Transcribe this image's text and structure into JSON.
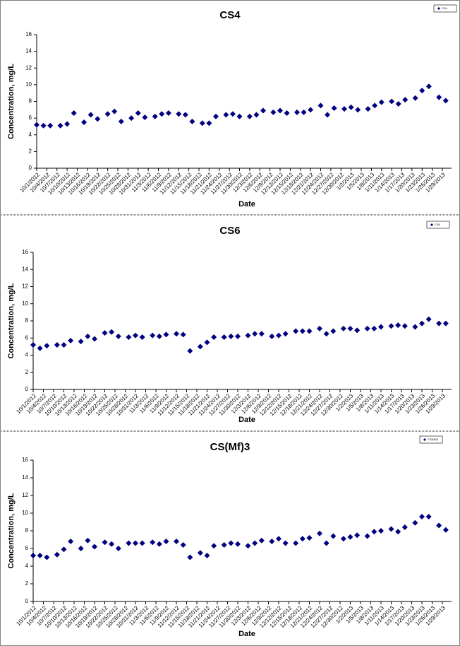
{
  "chart_data": [
    {
      "type": "scatter",
      "title": "CS4",
      "x_label": "Date",
      "y_label": "Concentration, mg/L",
      "x": [
        "10/1/2012",
        "10/3/2012",
        "10/5/2012",
        "10/8/2012",
        "10/10/2012",
        "10/12/2012",
        "10/15/2012",
        "10/17/2012",
        "10/19/2012",
        "10/22/2012",
        "10/24/2012",
        "10/26/2012",
        "10/29/2012",
        "10/31/2012",
        "11/2/2012",
        "11/5/2012",
        "11/7/2012",
        "11/9/2012",
        "11/12/2012",
        "11/14/2012",
        "11/16/2012",
        "11/19/2012",
        "11/21/2012",
        "11/23/2012",
        "11/26/2012",
        "11/28/2012",
        "11/30/2012",
        "12/3/2012",
        "12/5/2012",
        "12/7/2012",
        "12/10/2012",
        "12/12/2012",
        "12/14/2012",
        "12/17/2012",
        "12/19/2012",
        "12/21/2012",
        "12/24/2012",
        "12/26/2012",
        "12/28/2012",
        "12/31/2012",
        "1/2/2013",
        "1/4/2013",
        "1/7/2013",
        "1/9/2013",
        "1/11/2013",
        "1/14/2013",
        "1/16/2013",
        "1/18/2013",
        "1/21/2013",
        "1/23/2013",
        "1/25/2013",
        "1/28/2013",
        "1/30/2013"
      ],
      "series": [
        {
          "name": "CS4",
          "color": "#000080",
          "values": [
            5.2,
            5.1,
            5.1,
            5.1,
            5.3,
            6.6,
            5.5,
            6.4,
            5.9,
            6.5,
            6.8,
            5.6,
            6.0,
            6.6,
            6.1,
            6.2,
            6.5,
            6.6,
            6.5,
            6.4,
            5.6,
            5.4,
            5.4,
            6.2,
            6.4,
            6.5,
            6.2,
            6.2,
            6.4,
            6.9,
            6.7,
            6.9,
            6.6,
            6.7,
            6.7,
            7.0,
            7.5,
            6.4,
            7.2,
            7.1,
            7.3,
            7.0,
            7.1,
            7.5,
            7.9,
            8.0,
            7.7,
            8.2,
            8.4,
            9.3,
            9.8,
            8.5,
            8.1
          ]
        }
      ],
      "xlim": [
        "10/1/2012",
        "1/29/2013"
      ],
      "xticks": [
        "10/1/2012",
        "10/4/2012",
        "10/7/2012",
        "10/10/2012",
        "10/13/2012",
        "10/16/2012",
        "10/19/2012",
        "10/22/2012",
        "10/25/2012",
        "10/28/2012",
        "10/31/2012",
        "11/3/2012",
        "11/6/2012",
        "11/9/2012",
        "11/12/2012",
        "11/15/2012",
        "11/18/2012",
        "11/21/2012",
        "11/24/2012",
        "11/27/2012",
        "11/30/2012",
        "12/3/2012",
        "12/6/2012",
        "12/9/2012",
        "12/12/2012",
        "12/15/2012",
        "12/18/2012",
        "12/21/2012",
        "12/24/2012",
        "12/27/2012",
        "12/30/2012",
        "1/2/2013",
        "1/5/2013",
        "1/8/2013",
        "1/11/2013",
        "1/14/2013",
        "1/17/2013",
        "1/20/2013",
        "1/23/2013",
        "1/26/2013",
        "1/29/2013"
      ],
      "ylim": [
        0,
        16
      ],
      "yticks": [
        0,
        2,
        4,
        6,
        8,
        10,
        12,
        14,
        16
      ],
      "grid": false,
      "legend": "upper right"
    },
    {
      "type": "scatter",
      "title": "CS6",
      "x_label": "Date",
      "y_label": "Concentration, mg/L",
      "x": [
        "10/1/2012",
        "10/3/2012",
        "10/5/2012",
        "10/8/2012",
        "10/10/2012",
        "10/12/2012",
        "10/15/2012",
        "10/17/2012",
        "10/19/2012",
        "10/22/2012",
        "10/24/2012",
        "10/26/2012",
        "10/29/2012",
        "10/31/2012",
        "11/2/2012",
        "11/5/2012",
        "11/7/2012",
        "11/9/2012",
        "11/12/2012",
        "11/14/2012",
        "11/16/2012",
        "11/19/2012",
        "11/21/2012",
        "11/23/2012",
        "11/26/2012",
        "11/28/2012",
        "11/30/2012",
        "12/3/2012",
        "12/5/2012",
        "12/7/2012",
        "12/10/2012",
        "12/12/2012",
        "12/14/2012",
        "12/17/2012",
        "12/19/2012",
        "12/21/2012",
        "12/24/2012",
        "12/26/2012",
        "12/28/2012",
        "12/31/2012",
        "1/2/2013",
        "1/4/2013",
        "1/7/2013",
        "1/9/2013",
        "1/11/2013",
        "1/14/2013",
        "1/16/2013",
        "1/18/2013",
        "1/21/2013",
        "1/23/2013",
        "1/25/2013",
        "1/28/2013",
        "1/30/2013"
      ],
      "series": [
        {
          "name": "CS6",
          "color": "#000080",
          "values": [
            5.2,
            4.8,
            5.1,
            5.2,
            5.2,
            5.7,
            5.6,
            6.2,
            5.9,
            6.6,
            6.7,
            6.2,
            6.1,
            6.3,
            6.1,
            6.3,
            6.2,
            6.4,
            6.5,
            6.4,
            4.5,
            5.0,
            5.5,
            6.1,
            6.1,
            6.2,
            6.2,
            6.3,
            6.5,
            6.5,
            6.2,
            6.3,
            6.5,
            6.8,
            6.8,
            6.8,
            7.1,
            6.5,
            6.8,
            7.1,
            7.1,
            6.9,
            7.1,
            7.1,
            7.3,
            7.4,
            7.5,
            7.4,
            7.3,
            7.7,
            8.2,
            7.7,
            7.7
          ]
        }
      ],
      "xlim": [
        "10/1/2012",
        "1/29/2013"
      ],
      "xticks": [
        "10/1/2012",
        "10/4/2012",
        "10/7/2012",
        "10/10/2012",
        "10/13/2012",
        "10/16/2012",
        "10/19/2012",
        "10/22/2012",
        "10/25/2012",
        "10/28/2012",
        "10/31/2012",
        "11/3/2012",
        "11/6/2012",
        "11/9/2012",
        "11/12/2012",
        "11/15/2012",
        "11/18/2012",
        "11/21/2012",
        "11/24/2012",
        "11/27/2012",
        "11/30/2012",
        "12/3/2012",
        "12/6/2012",
        "12/9/2012",
        "12/12/2012",
        "12/15/2012",
        "12/18/2012",
        "12/21/2012",
        "12/24/2012",
        "12/27/2012",
        "12/30/2012",
        "1/2/2013",
        "1/5/2013",
        "1/8/2013",
        "1/11/2013",
        "1/14/2013",
        "1/17/2013",
        "1/20/2013",
        "1/23/2013",
        "1/26/2013",
        "1/29/2013"
      ],
      "ylim": [
        0,
        16
      ],
      "yticks": [
        0,
        2,
        4,
        6,
        8,
        10,
        12,
        14,
        16
      ],
      "grid": false,
      "legend": "upper right"
    },
    {
      "type": "scatter",
      "title": "CS(Mf)3",
      "x_label": "Date",
      "y_label": "Concentration, mg/L",
      "x": [
        "10/1/2012",
        "10/3/2012",
        "10/5/2012",
        "10/8/2012",
        "10/10/2012",
        "10/12/2012",
        "10/15/2012",
        "10/17/2012",
        "10/19/2012",
        "10/22/2012",
        "10/24/2012",
        "10/26/2012",
        "10/29/2012",
        "10/31/2012",
        "11/2/2012",
        "11/5/2012",
        "11/7/2012",
        "11/9/2012",
        "11/12/2012",
        "11/14/2012",
        "11/16/2012",
        "11/19/2012",
        "11/21/2012",
        "11/23/2012",
        "11/26/2012",
        "11/28/2012",
        "11/30/2012",
        "12/3/2012",
        "12/5/2012",
        "12/7/2012",
        "12/10/2012",
        "12/12/2012",
        "12/14/2012",
        "12/17/2012",
        "12/19/2012",
        "12/21/2012",
        "12/24/2012",
        "12/26/2012",
        "12/28/2012",
        "12/31/2012",
        "1/2/2013",
        "1/4/2013",
        "1/7/2013",
        "1/9/2013",
        "1/11/2013",
        "1/14/2013",
        "1/16/2013",
        "1/18/2013",
        "1/21/2013",
        "1/23/2013",
        "1/25/2013",
        "1/28/2013",
        "1/30/2013"
      ],
      "series": [
        {
          "name": "CS(Mf)3",
          "color": "#000080",
          "values": [
            5.2,
            5.2,
            5.0,
            5.3,
            5.9,
            6.8,
            6.0,
            6.9,
            6.2,
            6.7,
            6.5,
            6.0,
            6.6,
            6.6,
            6.6,
            6.7,
            6.5,
            6.8,
            6.8,
            6.4,
            5.0,
            5.5,
            5.2,
            6.3,
            6.4,
            6.6,
            6.5,
            6.3,
            6.6,
            6.9,
            6.8,
            7.1,
            6.6,
            6.6,
            7.1,
            7.2,
            7.7,
            6.6,
            7.4,
            7.1,
            7.3,
            7.5,
            7.4,
            7.9,
            8.0,
            8.2,
            7.9,
            8.4,
            8.9,
            9.6,
            9.6,
            8.6,
            8.1
          ]
        }
      ],
      "xlim": [
        "10/1/2012",
        "1/29/2013"
      ],
      "xticks": [
        "10/1/2012",
        "10/4/2012",
        "10/7/2012",
        "10/10/2012",
        "10/13/2012",
        "10/16/2012",
        "10/19/2012",
        "10/22/2012",
        "10/25/2012",
        "10/28/2012",
        "10/31/2012",
        "11/3/2012",
        "11/6/2012",
        "11/9/2012",
        "11/12/2012",
        "11/15/2012",
        "11/18/2012",
        "11/21/2012",
        "11/24/2012",
        "11/27/2012",
        "11/30/2012",
        "12/3/2012",
        "12/6/2012",
        "12/9/2012",
        "12/12/2012",
        "12/15/2012",
        "12/18/2012",
        "12/21/2012",
        "12/24/2012",
        "12/27/2012",
        "12/30/2012",
        "1/2/2013",
        "1/5/2013",
        "1/8/2013",
        "1/11/2013",
        "1/14/2013",
        "1/17/2013",
        "1/20/2013",
        "1/23/2013",
        "1/26/2013",
        "1/29/2013"
      ],
      "ylim": [
        0,
        16
      ],
      "yticks": [
        0,
        2,
        4,
        6,
        8,
        10,
        12,
        14,
        16
      ],
      "grid": false,
      "legend": "upper right"
    }
  ]
}
